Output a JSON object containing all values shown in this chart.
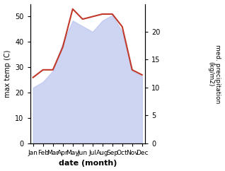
{
  "months": [
    "Jan",
    "Feb",
    "Mar",
    "Apr",
    "May",
    "Jun",
    "Jul",
    "Aug",
    "Sep",
    "Oct",
    "Nov",
    "Dec"
  ],
  "temperature": [
    26,
    29,
    29,
    38,
    53,
    49,
    50,
    51,
    51,
    46,
    29,
    27
  ],
  "precipitation": [
    10,
    11,
    13,
    18,
    22,
    21,
    20,
    22,
    23,
    20,
    13,
    12
  ],
  "temp_color": "#c0392b",
  "precip_fill_color": "#b8c4ee",
  "left_ylim": [
    0,
    55
  ],
  "right_ylim": [
    0,
    25
  ],
  "left_yticks": [
    0,
    10,
    20,
    30,
    40,
    50
  ],
  "right_yticks": [
    0,
    5,
    10,
    15,
    20
  ],
  "ylabel_left": "max temp (C)",
  "ylabel_right": "med. precipitation\n(kg/m2)",
  "xlabel": "date (month)",
  "bg_color": "#ffffff",
  "scale_factor": 2.2
}
